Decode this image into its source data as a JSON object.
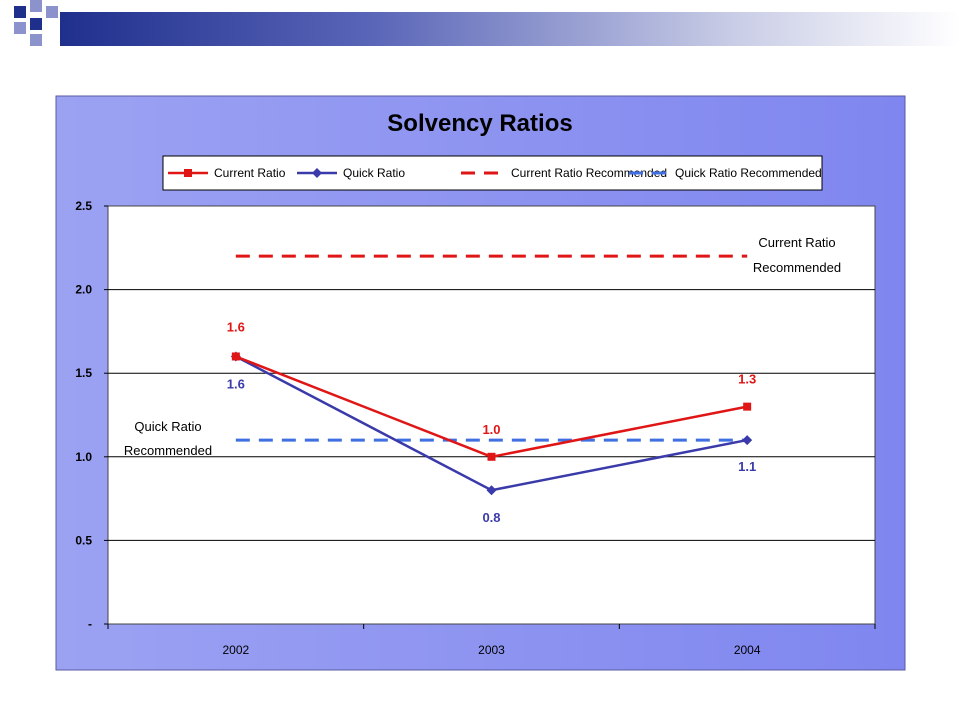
{
  "colors": {
    "current": "#e01616",
    "quick": "#3a3aaa",
    "current_rec": "#e01616",
    "quick_rec": "#3f6fe0",
    "panel_bg": "#8f95f0",
    "plot_bg": "#ffffff",
    "header_square_dark": "#1f2f8c",
    "header_square_light": "#8c93cc"
  },
  "icons": [
    "header-decoration-squares"
  ],
  "chart_data": {
    "type": "line",
    "title": "Solvency Ratios",
    "categories": [
      "2002",
      "2003",
      "2004"
    ],
    "series": [
      {
        "name": "Current Ratio",
        "values": [
          1.6,
          1.0,
          1.3
        ],
        "labels": [
          "1.6",
          "1.0",
          "1.3"
        ],
        "marker": "square",
        "style": "solid"
      },
      {
        "name": "Quick Ratio",
        "values": [
          1.6,
          0.8,
          1.1
        ],
        "labels": [
          "1.6",
          "0.8",
          "1.1"
        ],
        "marker": "diamond",
        "style": "solid"
      },
      {
        "name": "Current Ratio Recommended",
        "values": [
          2.2,
          2.2,
          2.2
        ],
        "style": "dashed"
      },
      {
        "name": "Quick Ratio Recommended",
        "values": [
          1.1,
          1.1,
          1.1
        ],
        "style": "dashed"
      }
    ],
    "ylim": [
      0,
      2.5
    ],
    "yticks": [
      0,
      0.5,
      1.0,
      1.5,
      2.0,
      2.5
    ],
    "ytick_labels": [
      "-",
      "0.5",
      "1.0",
      "1.5",
      "2.0",
      "2.5"
    ],
    "xlabel": "",
    "ylabel": "",
    "grid": "horizontal",
    "legend_position": "top",
    "annotations": {
      "current_rec": [
        "Current Ratio",
        "Recommended"
      ],
      "quick_rec": [
        "Quick Ratio",
        "Recommended"
      ]
    }
  }
}
